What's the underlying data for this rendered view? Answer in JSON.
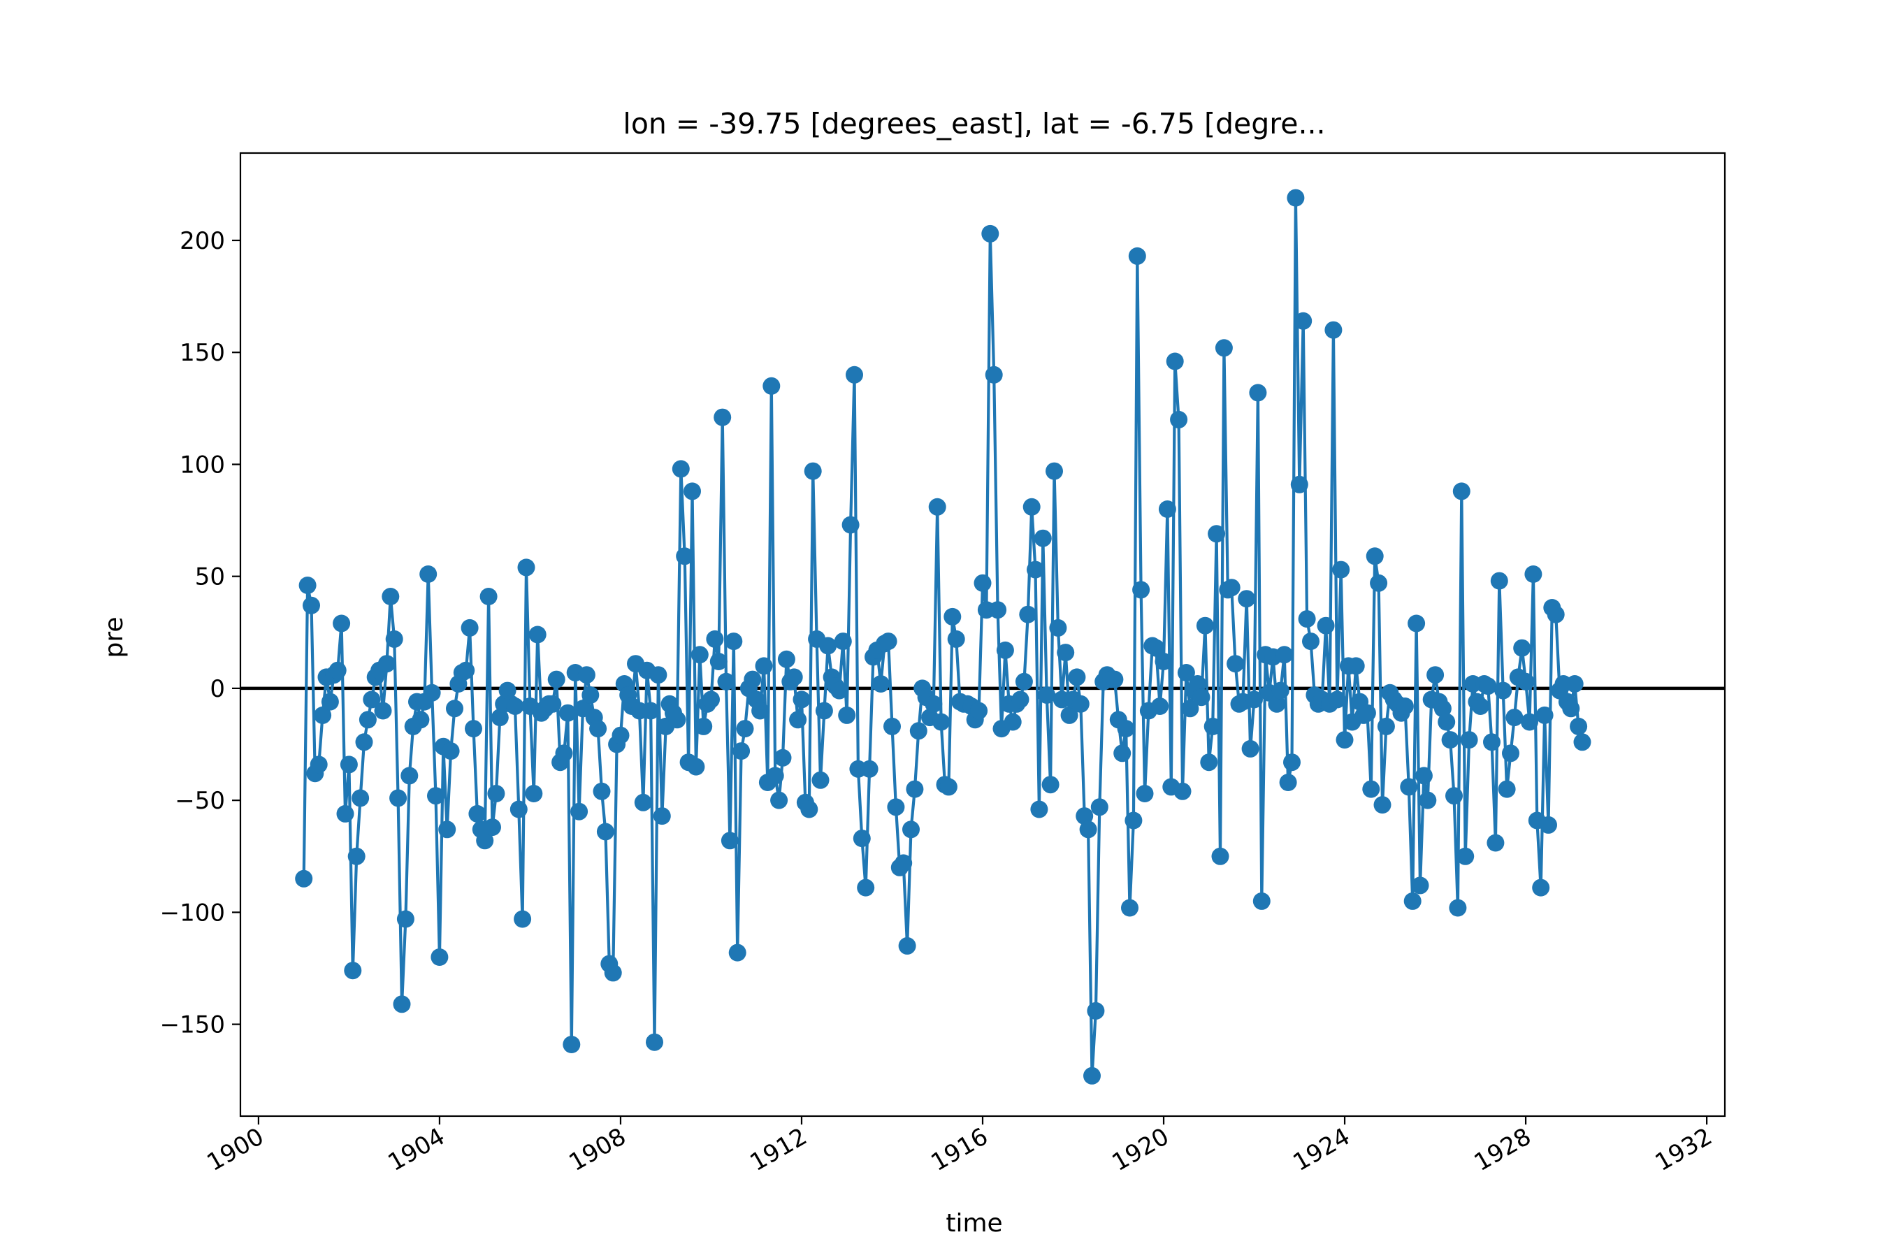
{
  "chart_data": {
    "type": "line",
    "title": "lon = -39.75 [degrees_east], lat = -6.75 [degre...",
    "xlabel": "time",
    "ylabel": "pre",
    "xlim": [
      1899.6,
      1932.4
    ],
    "ylim": [
      -191,
      239
    ],
    "x_ticks": [
      1900,
      1904,
      1908,
      1912,
      1916,
      1920,
      1924,
      1928,
      1932
    ],
    "y_ticks": [
      -150,
      -100,
      -50,
      0,
      50,
      100,
      150,
      200
    ],
    "y_tick_labels": [
      "−150",
      "−100",
      "−50",
      "0",
      "50",
      "100",
      "150",
      "200"
    ],
    "grid": false,
    "reference_line": 0,
    "colors": {
      "series": "#1f77b4",
      "reference_line": "#000000"
    },
    "series": [
      {
        "marker": "circle",
        "x_start": 1901.0,
        "x_step_months": 1,
        "values": [
          -85,
          46,
          37,
          -38,
          -34,
          -12,
          5,
          -6,
          6,
          8,
          29,
          -56,
          -34,
          -126,
          -75,
          -49,
          -24,
          -14,
          -5,
          5,
          8,
          -10,
          11,
          41,
          22,
          -49,
          -141,
          -103,
          -39,
          -17,
          -6,
          -14,
          -6,
          51,
          -2,
          -48,
          -120,
          -26,
          -63,
          -28,
          -9,
          2,
          7,
          8,
          27,
          -18,
          -56,
          -63,
          -68,
          41,
          -62,
          -47,
          -13,
          -7,
          -1,
          -7,
          -8,
          -54,
          -103,
          54,
          -8,
          -47,
          24,
          -11,
          -9,
          -7,
          -7,
          4,
          -33,
          -29,
          -11,
          -159,
          7,
          -55,
          -9,
          6,
          -3,
          -13,
          -18,
          -46,
          -64,
          -123,
          -127,
          -25,
          -21,
          2,
          -3,
          -8,
          11,
          -10,
          -51,
          8,
          -10,
          -158,
          6,
          -57,
          -17,
          -7,
          -11,
          -14,
          98,
          59,
          -33,
          88,
          -35,
          15,
          -17,
          -7,
          -5,
          22,
          12,
          121,
          3,
          -68,
          21,
          -118,
          -28,
          -18,
          0,
          4,
          -5,
          -10,
          10,
          -42,
          135,
          -39,
          -50,
          -31,
          13,
          3,
          5,
          -14,
          -5,
          -51,
          -54,
          97,
          22,
          -41,
          -10,
          19,
          5,
          1,
          -1,
          21,
          -12,
          73,
          140,
          -36,
          -67,
          -89,
          -36,
          14,
          17,
          2,
          20,
          21,
          -17,
          -53,
          -80,
          -78,
          -115,
          -63,
          -45,
          -19,
          0,
          -4,
          -13,
          -7,
          81,
          -15,
          -43,
          -44,
          32,
          22,
          -6,
          -7,
          -7,
          -8,
          -14,
          -10,
          47,
          35,
          203,
          140,
          35,
          -18,
          17,
          -7,
          -15,
          -7,
          -5,
          3,
          33,
          81,
          53,
          -54,
          67,
          -3,
          -43,
          97,
          27,
          -5,
          16,
          -12,
          -5,
          5,
          -7,
          -57,
          -63,
          -173,
          -144,
          -53,
          3,
          6,
          4,
          4,
          -14,
          -29,
          -18,
          -98,
          -59,
          193,
          44,
          -47,
          -10,
          19,
          18,
          -8,
          12,
          80,
          -44,
          146,
          120,
          -46,
          7,
          -9,
          -1,
          2,
          -4,
          28,
          -33,
          -17,
          69,
          -75,
          152,
          44,
          45,
          11,
          -7,
          -6,
          40,
          -27,
          -5,
          132,
          -95,
          15,
          -2,
          14,
          -7,
          -1,
          15,
          -42,
          -33,
          219,
          91,
          164,
          31,
          21,
          -3,
          -7,
          -5,
          28,
          -7,
          160,
          -5,
          53,
          -23,
          10,
          -15,
          10,
          -6,
          -12,
          -11,
          -45,
          59,
          47,
          -52,
          -17,
          -2,
          -5,
          -7,
          -11,
          -8,
          -44,
          -95,
          29,
          -88,
          -39,
          -50,
          -5,
          6,
          -6,
          -9,
          -15,
          -23,
          -48,
          -98,
          88,
          -75,
          -23,
          2,
          -6,
          -8,
          2,
          1,
          -24,
          -69,
          48,
          -1,
          -45,
          -29,
          -13,
          5,
          18,
          3,
          -15,
          51,
          -59,
          -89,
          -12,
          -61,
          36,
          33,
          -1,
          2,
          -6,
          -9,
          2,
          -17,
          -24
        ]
      }
    ]
  }
}
